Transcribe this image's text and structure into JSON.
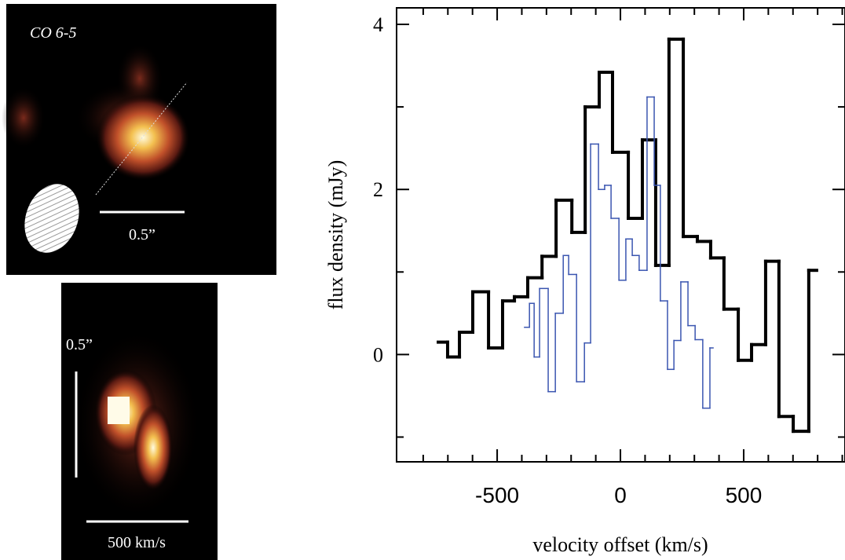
{
  "panels": {
    "map_label": "CO 6-5",
    "map_scale_label": "0.5”",
    "pv_scale_label": "0.5”",
    "pv_velocity_label": "500 km/s"
  },
  "chart_data": {
    "type": "step",
    "xlabel": "velocity offset (km/s)",
    "ylabel": "flux density (mJy)",
    "xlim": [
      -908,
      911
    ],
    "ylim": [
      -1.3,
      4.2
    ],
    "xticks": [
      -500,
      0,
      500
    ],
    "yticks": [
      0,
      2,
      4
    ],
    "xminor": [
      -800,
      -700,
      -600,
      -400,
      -300,
      -200,
      -100,
      100,
      200,
      300,
      400,
      600,
      700,
      800,
      900
    ],
    "yminor": [
      -1,
      1,
      3
    ],
    "series": [
      {
        "color": "#000000",
        "width": 4,
        "bins": [
          -739,
          -701,
          -653,
          -599,
          -535,
          -478,
          -430,
          -376,
          -318,
          -261,
          -197,
          -143,
          -86,
          -32,
          32,
          89,
          143,
          197,
          255,
          312,
          366,
          420,
          478,
          532,
          589,
          643,
          701,
          764,
          796
        ],
        "values": [
          0.15,
          -0.03,
          0.27,
          0.76,
          0.08,
          0.65,
          0.7,
          0.93,
          1.19,
          1.87,
          1.48,
          3.0,
          3.42,
          2.45,
          1.65,
          2.6,
          1.08,
          3.82,
          1.43,
          1.37,
          1.17,
          0.55,
          -0.07,
          0.12,
          1.13,
          -0.75,
          -0.93,
          1.02
        ]
      },
      {
        "color": "#3a55b0",
        "width": 1.5,
        "bins": [
          -389,
          -369,
          -350,
          -328,
          -293,
          -264,
          -232,
          -210,
          -178,
          -146,
          -121,
          -89,
          -64,
          -38,
          -6,
          22,
          48,
          76,
          108,
          137,
          162,
          191,
          217,
          245,
          274,
          303,
          334,
          363,
          376
        ],
        "values": [
          0.33,
          0.62,
          -0.03,
          0.8,
          -0.45,
          0.5,
          1.2,
          0.97,
          -0.33,
          0.14,
          2.55,
          2.0,
          2.05,
          1.65,
          0.9,
          1.4,
          1.2,
          1.02,
          3.12,
          2.05,
          0.65,
          -0.18,
          0.17,
          0.88,
          0.35,
          0.18,
          -0.65,
          0.08
        ]
      }
    ]
  }
}
